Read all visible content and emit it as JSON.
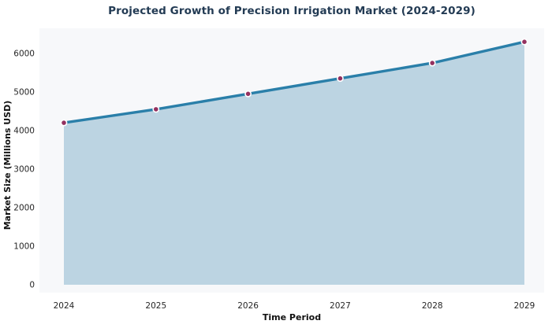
{
  "chart_data": {
    "type": "area",
    "title": "Projected Growth of Precision Irrigation Market (2024-2029)",
    "xlabel": "Time Period",
    "ylabel": "Market Size (Millions USD)",
    "x": [
      "2024",
      "2025",
      "2026",
      "2027",
      "2028",
      "2029"
    ],
    "values": [
      4200,
      4550,
      4950,
      5350,
      5750,
      6300
    ],
    "yticks": [
      0,
      1000,
      2000,
      3000,
      4000,
      5000,
      6000
    ],
    "ylim": [
      0,
      6650
    ],
    "grid": false,
    "legend": false,
    "colors": {
      "line": "#2a7fa9",
      "fill": "#bcd4e2",
      "marker": "#94315f",
      "marker_edge": "#ffffff",
      "plot_bg": "#f7f8fa",
      "title": "#233b54",
      "tick": "#262626",
      "axis_label": "#111111",
      "page_bg": "#ffffff"
    }
  }
}
